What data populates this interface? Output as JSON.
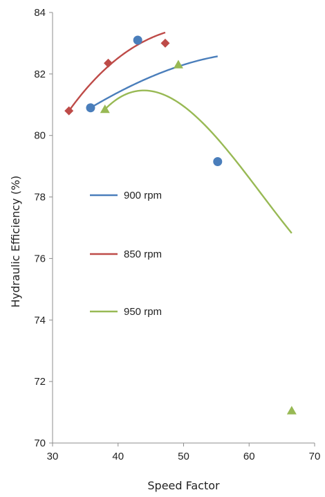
{
  "chart_data": {
    "type": "scatter",
    "xlabel": "Speed Factor",
    "ylabel": "Hydraulic Efficiency (%)",
    "xlim": [
      30,
      70
    ],
    "ylim": [
      70,
      84
    ],
    "xticks": [
      30,
      40,
      50,
      60,
      70
    ],
    "yticks": [
      70,
      72,
      74,
      76,
      78,
      80,
      82,
      84
    ],
    "grid": false,
    "legend_position": "left-middle",
    "series": [
      {
        "name": "900 rpm",
        "color": "#4a7ebb",
        "marker": "circle",
        "x": [
          35.8,
          43,
          55.2
        ],
        "y": [
          80.9,
          83.1,
          79.15
        ],
        "fit": [
          0.0,
          0.1264,
          -0.00168,
          -2e-05
        ]
      },
      {
        "name": "850 rpm",
        "color": "#be4b48",
        "marker": "diamond",
        "x": [
          32.5,
          38.5,
          47.2
        ],
        "y": [
          80.8,
          82.35,
          83.0
        ],
        "fit": [
          0.0,
          0.296,
          -0.00955,
          8.2e-05
        ]
      },
      {
        "name": "950 rpm",
        "color": "#98b954",
        "marker": "triangle",
        "x": [
          38,
          49.2,
          66.5
        ],
        "y": [
          80.85,
          82.3,
          71.05
        ],
        "fit": [
          0.0,
          0.2172,
          -0.0209,
          0.000292
        ]
      }
    ]
  }
}
